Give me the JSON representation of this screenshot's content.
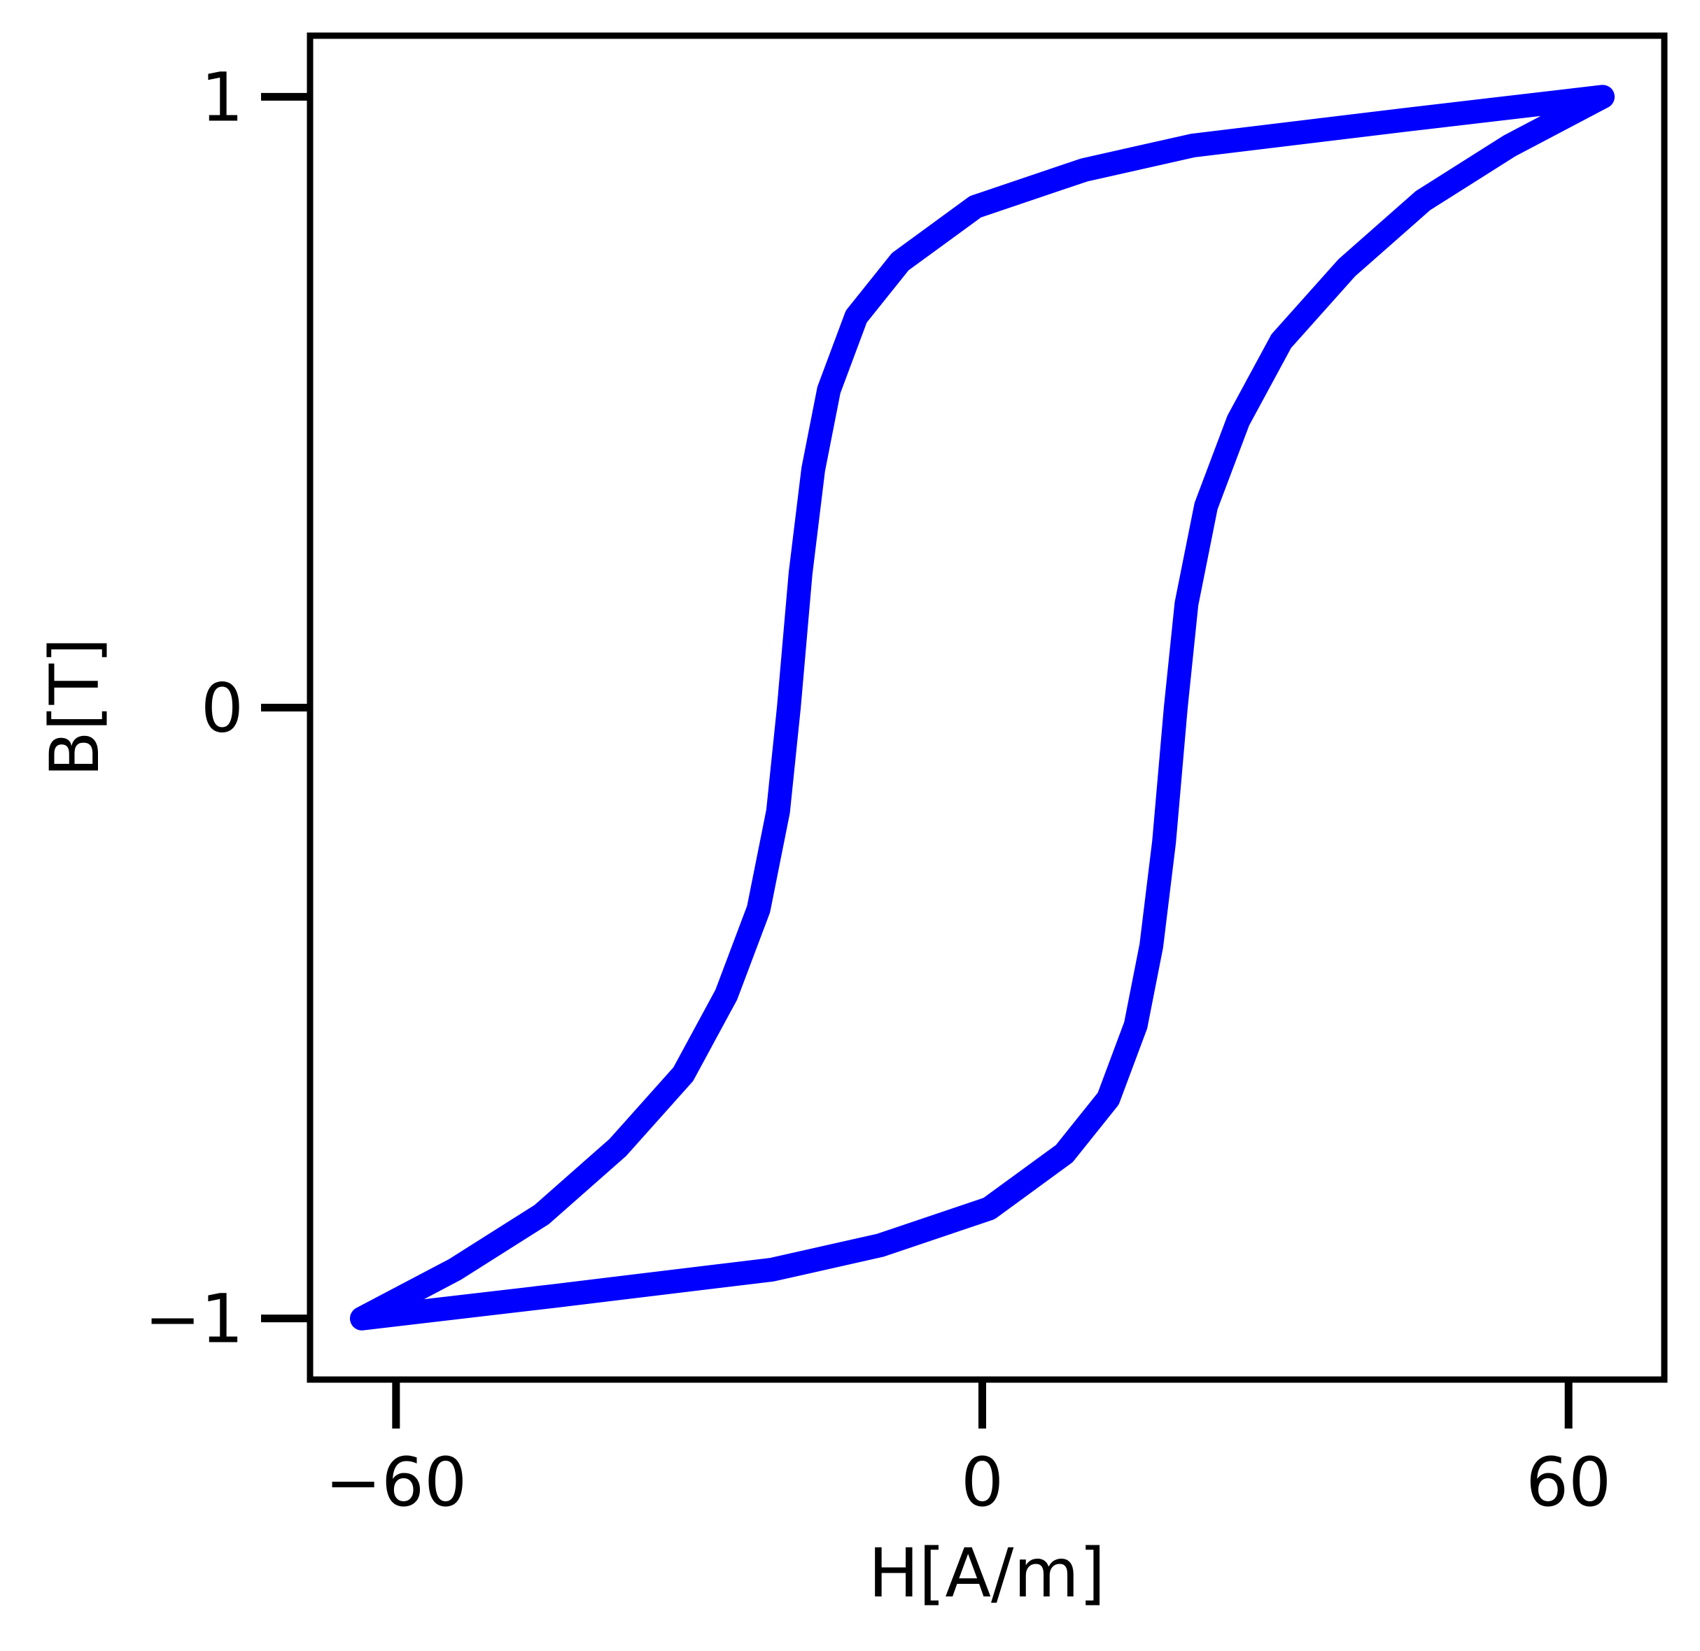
{
  "chart_data": {
    "type": "line",
    "xlabel": "H[A/m]",
    "ylabel": "B[T]",
    "x": [
      63.5,
      43.7,
      21.5,
      10.4,
      -0.7,
      -8.4,
      -12.9,
      -15.7,
      -17.3,
      -18.6,
      -19.8,
      -20.9,
      -22.9,
      -26.2,
      -30.6,
      -37.3,
      -45.1,
      -54,
      -63.5,
      -43.7,
      -21.5,
      -10.4,
      0.7,
      8.4,
      12.9,
      15.7,
      17.3,
      18.6,
      19.8,
      20.9,
      22.9,
      26.2,
      30.6,
      37.3,
      45.1,
      54,
      63.5
    ],
    "series": [
      {
        "color": "#0000ff",
        "values": [
          1.0,
          0.963,
          0.92,
          0.88,
          0.82,
          0.73,
          0.64,
          0.52,
          0.39,
          0.22,
          0,
          -0.17,
          -0.33,
          -0.47,
          -0.6,
          -0.72,
          -0.83,
          -0.92,
          -1.0,
          -0.963,
          -0.92,
          -0.88,
          -0.82,
          -0.73,
          -0.64,
          -0.52,
          -0.39,
          -0.22,
          0,
          0.17,
          0.33,
          0.47,
          0.6,
          0.72,
          0.83,
          0.92,
          1.0
        ]
      }
    ],
    "xlim": [
      -68.8,
      69.8
    ],
    "ylim": [
      -1.1,
      1.1
    ],
    "xticks": [
      {
        "value": -60,
        "label": "−60"
      },
      0,
      60
    ],
    "yticks": [
      {
        "value": -1,
        "label": "−1"
      },
      0,
      1
    ]
  }
}
